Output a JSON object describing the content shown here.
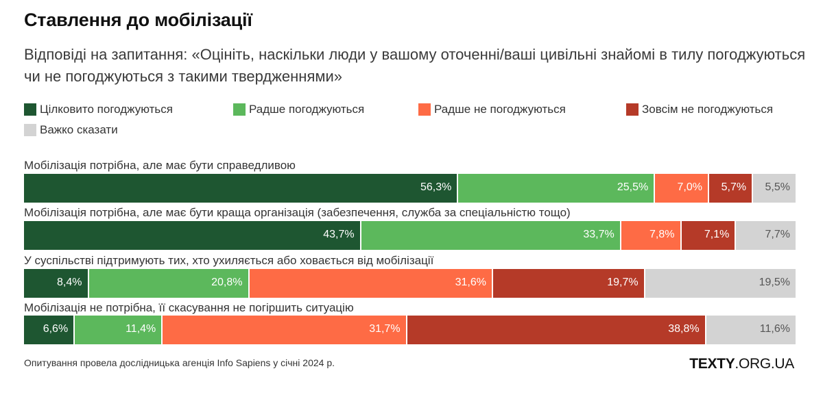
{
  "chart_data": {
    "type": "bar",
    "orientation": "horizontal",
    "stacked": true,
    "title": "Ставлення до мобілізації",
    "subtitle": "Відповіді на запитання: «Оцініть, наскільки люди у вашому оточенні/ваші цивільні знайомі в тилу погоджуються чи не погоджуються з такими твердженнями»",
    "categories": [
      "Мобілізація потрібна, але має бути справедливою",
      "Мобілізація потрібна, але має бути краща організація (забезпечення, служба за спеціальністю тощо)",
      "У суспільстві підтримують тих, хто ухиляється або ховається від мобілізації",
      "Мобілізація не потрібна, її скасування не погіршить ситуацію"
    ],
    "series": [
      {
        "name": "Цілковито погоджуються",
        "color": "#1e5631",
        "values": [
          56.3,
          43.7,
          8.4,
          6.6
        ],
        "labels": [
          "56,3%",
          "43,7%",
          "8,4%",
          "6,6%"
        ]
      },
      {
        "name": "Радше погоджуються",
        "color": "#5cb85c",
        "values": [
          25.5,
          33.7,
          20.8,
          11.4
        ],
        "labels": [
          "25,5%",
          "33,7%",
          "20,8%",
          "11,4%"
        ]
      },
      {
        "name": "Радше не погоджуються",
        "color": "#fe6b45",
        "values": [
          7.0,
          7.8,
          31.6,
          31.7
        ],
        "labels": [
          "7,0%",
          "7,8%",
          "31,6%",
          "31,7%"
        ]
      },
      {
        "name": "Зовсім не погоджуються",
        "color": "#b53a28",
        "values": [
          5.7,
          7.1,
          19.7,
          38.8
        ],
        "labels": [
          "5,7%",
          "7,1%",
          "19,7%",
          "38,8%"
        ]
      },
      {
        "name": "Важко сказати",
        "color": "#d3d3d3",
        "values": [
          5.5,
          7.7,
          19.5,
          11.6
        ],
        "labels": [
          "5,5%",
          "7,7%",
          "19,5%",
          "11,6%"
        ]
      }
    ],
    "xlim": [
      0,
      100
    ],
    "legend": "top-left"
  },
  "footer": {
    "note": "Опитування провела дослідницька агенція Info Sapiens у січні 2024 р.",
    "brand_bold": "TEXTY",
    "brand_rest": ".ORG.UA"
  }
}
